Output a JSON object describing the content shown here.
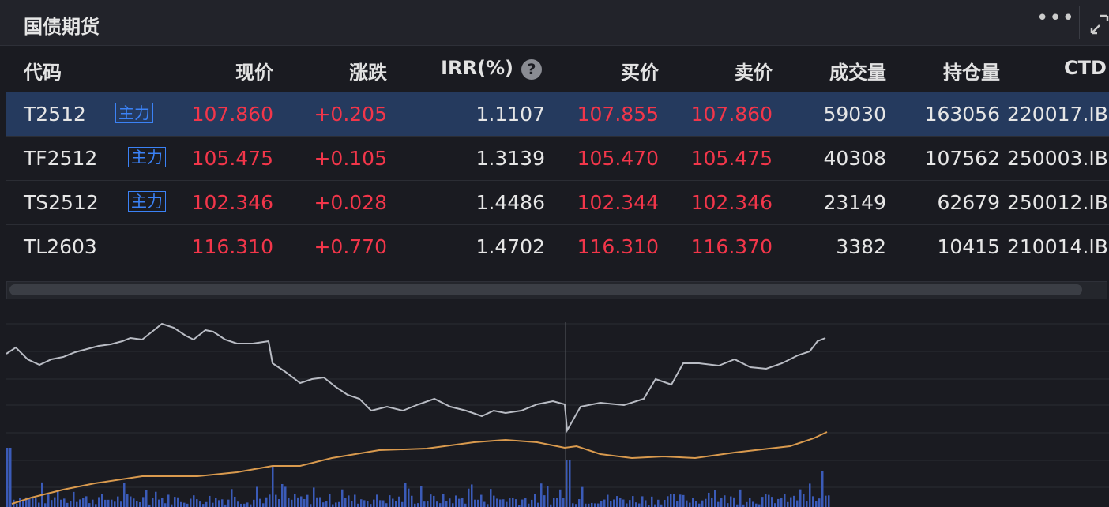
{
  "header": {
    "title": "国债期货"
  },
  "table": {
    "columns": [
      "代码",
      "现价",
      "涨跌",
      "IRR(%)",
      "买价",
      "卖价",
      "成交量",
      "持仓量",
      "CTD"
    ],
    "rows": [
      {
        "code": "T2512",
        "tag": "主力",
        "values": [
          "107.860",
          "+0.205",
          "1.1107",
          "107.855",
          "107.860",
          "59030",
          "163056",
          "220017.IB"
        ]
      },
      {
        "code": "TF2512",
        "tag": "主力",
        "values": [
          "105.475",
          "+0.105",
          "1.3139",
          "105.470",
          "105.475",
          "40308",
          "107562",
          "250003.IB"
        ]
      },
      {
        "code": "TS2512",
        "tag": "主力",
        "values": [
          "102.346",
          "+0.028",
          "1.4486",
          "102.344",
          "102.346",
          "23149",
          "62679",
          "250012.IB"
        ]
      },
      {
        "code": "TL2603",
        "values": [
          "116.310",
          "+0.770",
          "1.4702",
          "116.310",
          "116.370",
          "3382",
          "10415",
          "210014.IB"
        ]
      }
    ]
  }
}
